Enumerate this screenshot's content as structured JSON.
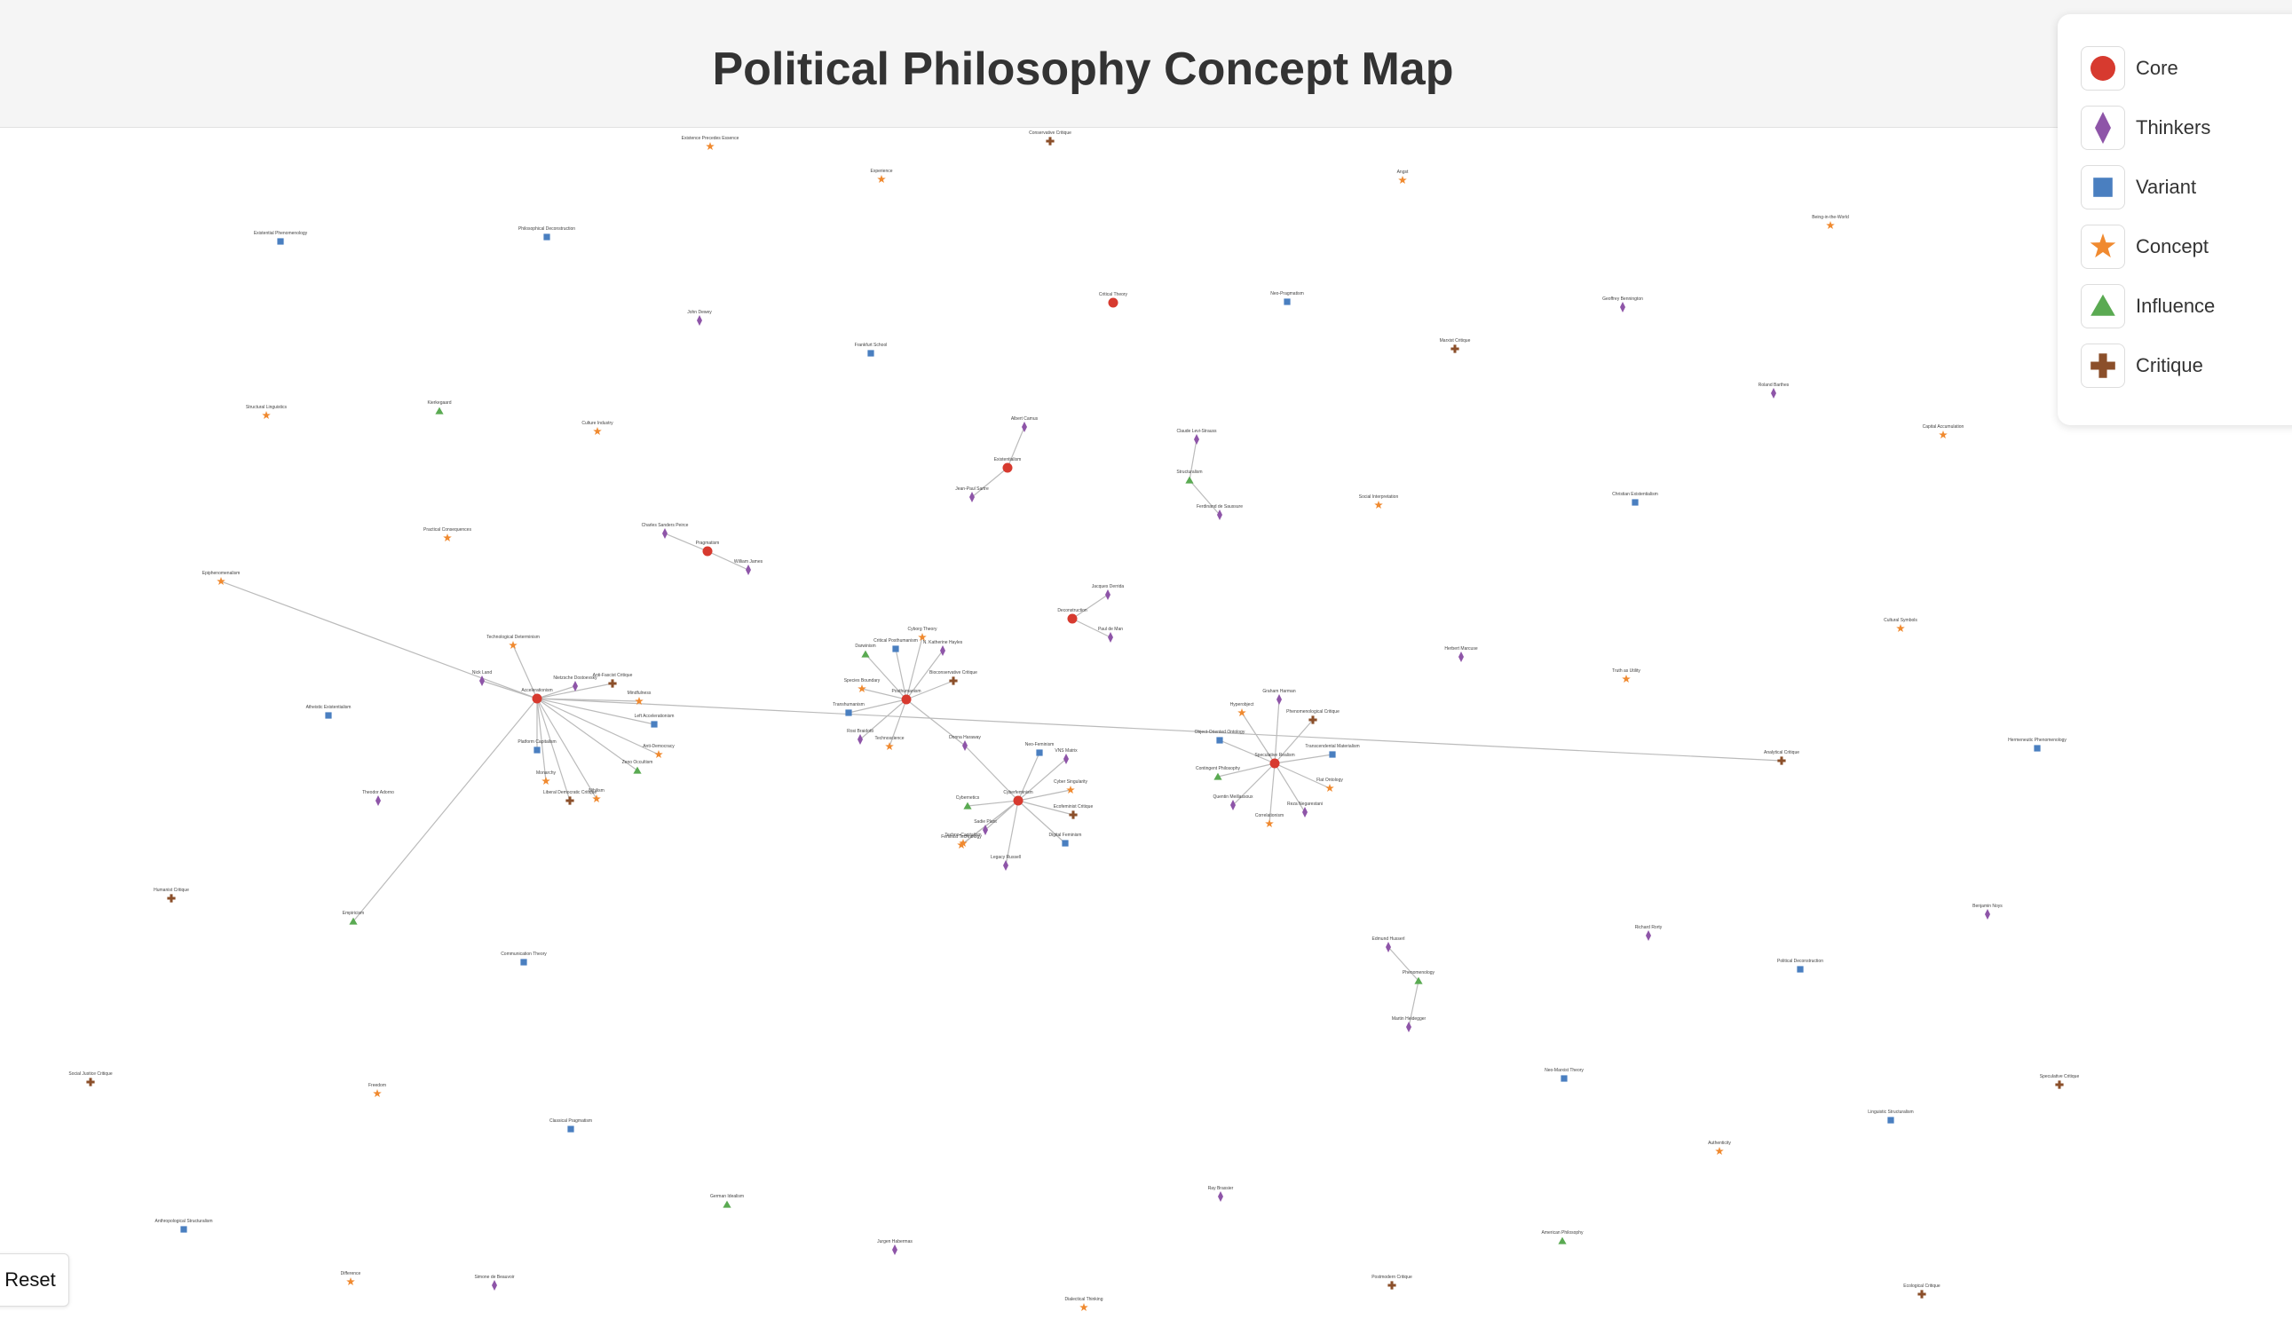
{
  "title": "Political Philosophy Concept Map",
  "reset_label": "Reset",
  "colors": {
    "core": "#d73a2f",
    "thinker": "#8e55a8",
    "variant": "#4a7fc0",
    "concept": "#f08a30",
    "influence": "#5aaa52",
    "critique": "#8b4f2a",
    "link": "#bbbbbb"
  },
  "legend": [
    {
      "type": "core",
      "label": "Core",
      "icon": "circle-icon"
    },
    {
      "type": "thinker",
      "label": "Thinkers",
      "icon": "diamond-icon"
    },
    {
      "type": "variant",
      "label": "Variant",
      "icon": "square-icon"
    },
    {
      "type": "concept",
      "label": "Concept",
      "icon": "star-icon"
    },
    {
      "type": "influence",
      "label": "Influence",
      "icon": "triangle-icon"
    },
    {
      "type": "critique",
      "label": "Critique",
      "icon": "cross-icon"
    }
  ],
  "nodes": [
    {
      "id": "n1",
      "label": "Existence Precedes Essence",
      "type": "concept"
    },
    {
      "id": "n2",
      "label": "Conservative Critique",
      "type": "critique"
    },
    {
      "id": "n3",
      "label": "Experience",
      "type": "concept"
    },
    {
      "id": "n4",
      "label": "Angst",
      "type": "concept"
    },
    {
      "id": "n5",
      "label": "Being-in-the-World",
      "type": "concept"
    },
    {
      "id": "n6",
      "label": "Existential Phenomenology",
      "type": "variant"
    },
    {
      "id": "n7",
      "label": "Philosophical Deconstruction",
      "type": "variant"
    },
    {
      "id": "n8",
      "label": "Critical Theory",
      "type": "core"
    },
    {
      "id": "n9",
      "label": "Neo-Pragmatism",
      "type": "variant"
    },
    {
      "id": "n10",
      "label": "Geoffrey Bennington",
      "type": "thinker"
    },
    {
      "id": "n11",
      "label": "John Dewey",
      "type": "thinker"
    },
    {
      "id": "n12",
      "label": "Frankfurt School",
      "type": "variant"
    },
    {
      "id": "n13",
      "label": "Marxist Critique",
      "type": "critique"
    },
    {
      "id": "n14",
      "label": "Roland Barthes",
      "type": "thinker"
    },
    {
      "id": "n15",
      "label": "Structural Linguistics",
      "type": "concept"
    },
    {
      "id": "n16",
      "label": "Kierkegaard",
      "type": "influence"
    },
    {
      "id": "n17",
      "label": "Culture Industry",
      "type": "concept"
    },
    {
      "id": "n18",
      "label": "Albert Camus",
      "type": "thinker"
    },
    {
      "id": "n19",
      "label": "Claude Levi-Strauss",
      "type": "thinker"
    },
    {
      "id": "n20",
      "label": "Capital Accumulation",
      "type": "concept"
    },
    {
      "id": "n21",
      "label": "Existentialism",
      "type": "core"
    },
    {
      "id": "n22",
      "label": "Structuralism",
      "type": "influence"
    },
    {
      "id": "n23",
      "label": "Jean-Paul Sartre",
      "type": "thinker"
    },
    {
      "id": "n24",
      "label": "Ferdinand de Saussure",
      "type": "thinker"
    },
    {
      "id": "n25",
      "label": "Social Interpretation",
      "type": "concept"
    },
    {
      "id": "n26",
      "label": "Christian Existentialism",
      "type": "variant"
    },
    {
      "id": "n27",
      "label": "Practical Consequences",
      "type": "concept"
    },
    {
      "id": "n28",
      "label": "Charles Sanders Peirce",
      "type": "thinker"
    },
    {
      "id": "n29",
      "label": "Pragmatism",
      "type": "core"
    },
    {
      "id": "n30",
      "label": "William James",
      "type": "thinker"
    },
    {
      "id": "n31",
      "label": "Epiphenomenalism",
      "type": "concept"
    },
    {
      "id": "n32",
      "label": "Jacques Derrida",
      "type": "thinker"
    },
    {
      "id": "n33",
      "label": "Deconstruction",
      "type": "core"
    },
    {
      "id": "n34",
      "label": "Paul de Man",
      "type": "thinker"
    },
    {
      "id": "n35",
      "label": "Cultural Symbols",
      "type": "concept"
    },
    {
      "id": "n36",
      "label": "Technological Determinism",
      "type": "concept"
    },
    {
      "id": "n37",
      "label": "Cyborg Theory",
      "type": "concept"
    },
    {
      "id": "n38",
      "label": "Critical Posthumanism",
      "type": "variant"
    },
    {
      "id": "n39",
      "label": "N. Katherine Hayles",
      "type": "thinker"
    },
    {
      "id": "n40",
      "label": "Herbert Marcuse",
      "type": "thinker"
    },
    {
      "id": "n41",
      "label": "Truth as Utility",
      "type": "concept"
    },
    {
      "id": "n42",
      "label": "Darwinism",
      "type": "influence"
    },
    {
      "id": "n43",
      "label": "Bioconservative Critique",
      "type": "critique"
    },
    {
      "id": "n44",
      "label": "Nick Land",
      "type": "thinker"
    },
    {
      "id": "n45",
      "label": "Anti-Fascist Critique",
      "type": "critique"
    },
    {
      "id": "n46",
      "label": "Accelerationism",
      "type": "core"
    },
    {
      "id": "n47",
      "label": "Species Boundary",
      "type": "concept"
    },
    {
      "id": "n48",
      "label": "Posthumanism",
      "type": "core"
    },
    {
      "id": "n49",
      "label": "Techno-Capitalism",
      "type": "concept"
    },
    {
      "id": "n50",
      "label": "Nietzsche Dostoevsky",
      "type": "thinker"
    },
    {
      "id": "n51",
      "label": "Graham Harman",
      "type": "thinker"
    },
    {
      "id": "n52",
      "label": "Hyperobject",
      "type": "concept"
    },
    {
      "id": "n53",
      "label": "Phenomenological Critique",
      "type": "critique"
    },
    {
      "id": "n54",
      "label": "Atheistic Existentialism",
      "type": "variant"
    },
    {
      "id": "n55",
      "label": "Transhumanism",
      "type": "variant"
    },
    {
      "id": "n56",
      "label": "Left Accelerationism",
      "type": "variant"
    },
    {
      "id": "n57",
      "label": "Object-Oriented Ontology",
      "type": "variant"
    },
    {
      "id": "n58",
      "label": "Transcendental Materialism",
      "type": "variant"
    },
    {
      "id": "n59",
      "label": "Mindfulness",
      "type": "concept"
    },
    {
      "id": "n60",
      "label": "Speculative Realism",
      "type": "core"
    },
    {
      "id": "n61",
      "label": "Anti-Democracy",
      "type": "concept"
    },
    {
      "id": "n62",
      "label": "Rosi Braidotti",
      "type": "thinker"
    },
    {
      "id": "n63",
      "label": "Analytical Critique",
      "type": "critique"
    },
    {
      "id": "n64",
      "label": "Hermeneutic Phenomenology",
      "type": "variant"
    },
    {
      "id": "n65",
      "label": "Platform Capitalism",
      "type": "variant"
    },
    {
      "id": "n66",
      "label": "Donna Haraway",
      "type": "thinker"
    },
    {
      "id": "n67",
      "label": "Neo-Feminism",
      "type": "variant"
    },
    {
      "id": "n68",
      "label": "VNS Matrix",
      "type": "thinker"
    },
    {
      "id": "n69",
      "label": "Theodor Adorno",
      "type": "thinker"
    },
    {
      "id": "n70",
      "label": "Cyber Singularity",
      "type": "concept"
    },
    {
      "id": "n71",
      "label": "Monarchy",
      "type": "concept"
    },
    {
      "id": "n72",
      "label": "Zeno Occultism",
      "type": "influence"
    },
    {
      "id": "n73",
      "label": "Contingent Philosophy",
      "type": "influence"
    },
    {
      "id": "n74",
      "label": "Flat Ontology",
      "type": "concept"
    },
    {
      "id": "n75",
      "label": "Liberal Democratic Critique",
      "type": "critique"
    },
    {
      "id": "n76",
      "label": "Cyberfeminism",
      "type": "core"
    },
    {
      "id": "n77",
      "label": "Ecofeminist Critique",
      "type": "critique"
    },
    {
      "id": "n78",
      "label": "Quentin Meillassoux",
      "type": "thinker"
    },
    {
      "id": "n79",
      "label": "Cybernetics",
      "type": "influence"
    },
    {
      "id": "n80",
      "label": "Digital Feminism",
      "type": "variant"
    },
    {
      "id": "n81",
      "label": "Correlationism",
      "type": "concept"
    },
    {
      "id": "n82",
      "label": "Reza Negarestani",
      "type": "thinker"
    },
    {
      "id": "n83",
      "label": "Sadie Plant",
      "type": "thinker"
    },
    {
      "id": "n84",
      "label": "Feminist Technology",
      "type": "concept"
    },
    {
      "id": "n85",
      "label": "Technoscience",
      "type": "concept"
    },
    {
      "id": "n86",
      "label": "Legacy Russell",
      "type": "thinker"
    },
    {
      "id": "n87",
      "label": "Humanist Critique",
      "type": "critique"
    },
    {
      "id": "n88",
      "label": "Empiricism",
      "type": "influence"
    },
    {
      "id": "n89",
      "label": "Richard Rorty",
      "type": "thinker"
    },
    {
      "id": "n90",
      "label": "Benjamin Noys",
      "type": "thinker"
    },
    {
      "id": "n91",
      "label": "Edmund Husserl",
      "type": "thinker"
    },
    {
      "id": "n92",
      "label": "Communication Theory",
      "type": "variant"
    },
    {
      "id": "n93",
      "label": "Phenomenology",
      "type": "influence"
    },
    {
      "id": "n94",
      "label": "Political Deconstruction",
      "type": "variant"
    },
    {
      "id": "n95",
      "label": "Martin Heidegger",
      "type": "thinker"
    },
    {
      "id": "n96",
      "label": "Social Justice Critique",
      "type": "critique"
    },
    {
      "id": "n97",
      "label": "Freedom",
      "type": "concept"
    },
    {
      "id": "n98",
      "label": "Neo-Marxist Theory",
      "type": "variant"
    },
    {
      "id": "n99",
      "label": "Speculative Critique",
      "type": "critique"
    },
    {
      "id": "n100",
      "label": "Classical Pragmatism",
      "type": "variant"
    },
    {
      "id": "n101",
      "label": "Linguistic Structuralism",
      "type": "variant"
    },
    {
      "id": "n102",
      "label": "Authenticity",
      "type": "concept"
    },
    {
      "id": "n103",
      "label": "Nihilism",
      "type": "concept"
    },
    {
      "id": "n104",
      "label": "German Idealism",
      "type": "influence"
    },
    {
      "id": "n105",
      "label": "Ray Brassier",
      "type": "thinker"
    },
    {
      "id": "n106",
      "label": "Anthropological Structuralism",
      "type": "variant"
    },
    {
      "id": "n107",
      "label": "American Philosophy",
      "type": "influence"
    },
    {
      "id": "n108",
      "label": "Jurgen Habermas",
      "type": "thinker"
    },
    {
      "id": "n109",
      "label": "Difference",
      "type": "concept"
    },
    {
      "id": "n110",
      "label": "Simone de Beauvoir",
      "type": "thinker"
    },
    {
      "id": "n111",
      "label": "Postmodern Critique",
      "type": "critique"
    },
    {
      "id": "n112",
      "label": "Ecological Critique",
      "type": "critique"
    },
    {
      "id": "n113",
      "label": "Dialectical Thinking",
      "type": "concept"
    }
  ],
  "links": [
    [
      "n21",
      "n18"
    ],
    [
      "n21",
      "n23"
    ],
    [
      "n22",
      "n19"
    ],
    [
      "n22",
      "n24"
    ],
    [
      "n29",
      "n28"
    ],
    [
      "n29",
      "n30"
    ],
    [
      "n33",
      "n32"
    ],
    [
      "n33",
      "n34"
    ],
    [
      "n46",
      "n36"
    ],
    [
      "n46",
      "n44"
    ],
    [
      "n46",
      "n50"
    ],
    [
      "n46",
      "n45"
    ],
    [
      "n46",
      "n31"
    ],
    [
      "n46",
      "n65"
    ],
    [
      "n46",
      "n56"
    ],
    [
      "n46",
      "n61"
    ],
    [
      "n46",
      "n72"
    ],
    [
      "n46",
      "n75"
    ],
    [
      "n46",
      "n71"
    ],
    [
      "n46",
      "n103"
    ],
    [
      "n46",
      "n88"
    ],
    [
      "n46",
      "n63"
    ],
    [
      "n46",
      "n59"
    ],
    [
      "n48",
      "n37"
    ],
    [
      "n48",
      "n38"
    ],
    [
      "n48",
      "n39"
    ],
    [
      "n48",
      "n42"
    ],
    [
      "n48",
      "n43"
    ],
    [
      "n48",
      "n47"
    ],
    [
      "n48",
      "n55"
    ],
    [
      "n48",
      "n62"
    ],
    [
      "n48",
      "n85"
    ],
    [
      "n48",
      "n66"
    ],
    [
      "n60",
      "n51"
    ],
    [
      "n60",
      "n52"
    ],
    [
      "n60",
      "n53"
    ],
    [
      "n60",
      "n57"
    ],
    [
      "n60",
      "n58"
    ],
    [
      "n60",
      "n73"
    ],
    [
      "n60",
      "n74"
    ],
    [
      "n60",
      "n78"
    ],
    [
      "n60",
      "n81"
    ],
    [
      "n60",
      "n82"
    ],
    [
      "n76",
      "n66"
    ],
    [
      "n76",
      "n67"
    ],
    [
      "n76",
      "n68"
    ],
    [
      "n76",
      "n70"
    ],
    [
      "n76",
      "n77"
    ],
    [
      "n76",
      "n79"
    ],
    [
      "n76",
      "n80"
    ],
    [
      "n76",
      "n83"
    ],
    [
      "n76",
      "n84"
    ],
    [
      "n76",
      "n86"
    ],
    [
      "n76",
      "n49"
    ],
    [
      "n93",
      "n91"
    ],
    [
      "n93",
      "n95"
    ]
  ]
}
